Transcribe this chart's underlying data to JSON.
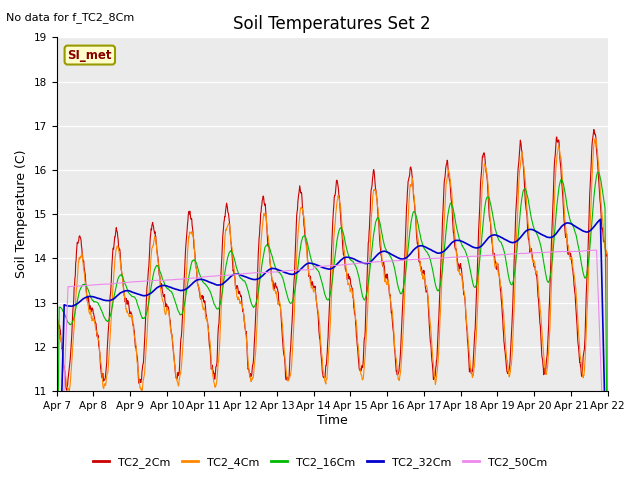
{
  "title": "Soil Temperatures Set 2",
  "subtitle": "No data for f_TC2_8Cm",
  "xlabel": "Time",
  "ylabel": "Soil Temperature (C)",
  "ylim": [
    11.0,
    19.0
  ],
  "yticks": [
    11.0,
    12.0,
    13.0,
    14.0,
    15.0,
    16.0,
    17.0,
    18.0,
    19.0
  ],
  "xtick_labels": [
    "Apr 7",
    "Apr 8",
    "Apr 9",
    "Apr 10",
    "Apr 11",
    "Apr 12",
    "Apr 13",
    "Apr 14",
    "Apr 15",
    "Apr 16",
    "Apr 17",
    "Apr 18",
    "Apr 19",
    "Apr 20",
    "Apr 21",
    "Apr 22"
  ],
  "series_colors": {
    "TC2_2Cm": "#cc0000",
    "TC2_4Cm": "#ff8800",
    "TC2_16Cm": "#00bb00",
    "TC2_32Cm": "#0000cc",
    "TC2_50Cm": "#ee88ee"
  },
  "legend_label": "SI_met",
  "legend_bg": "#ffffcc",
  "legend_border": "#999900",
  "plot_bg": "#ebebeb",
  "fig_bg": "#ffffff",
  "n_points": 1440
}
